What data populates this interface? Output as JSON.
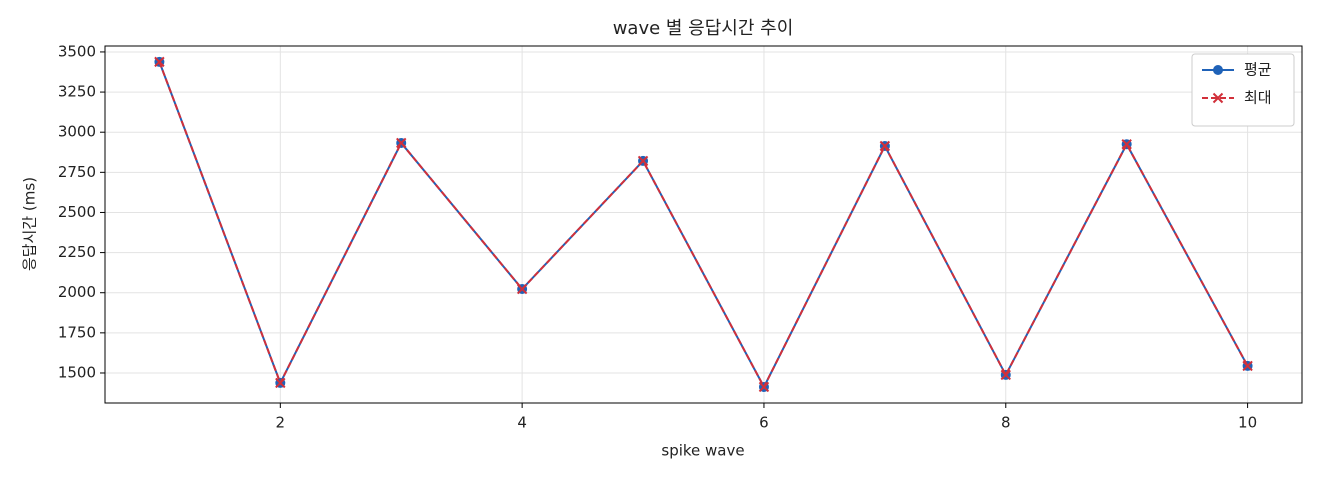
{
  "chart_data": {
    "type": "line",
    "title": "wave 별 응답시간 추이",
    "x_label": "spike wave",
    "y_label": "응답시간 (ms)",
    "x": [
      1,
      2,
      3,
      4,
      5,
      6,
      7,
      8,
      9,
      10
    ],
    "series": [
      {
        "name": "평균",
        "color": "#1f62b8",
        "marker": "circle",
        "dash": false,
        "values": [
          3438,
          1438,
          2933,
          2023,
          2821,
          1413,
          2914,
          1488,
          2925,
          1544
        ]
      },
      {
        "name": "최대",
        "color": "#d2303a",
        "marker": "x",
        "dash": true,
        "values": [
          3438,
          1438,
          2933,
          2023,
          2821,
          1413,
          2914,
          1488,
          2925,
          1544
        ]
      }
    ],
    "xlim": [
      0.55,
      10.45
    ],
    "xticks": [
      2,
      4,
      6,
      8,
      10
    ],
    "ylim": [
      1313,
      3537
    ],
    "yticks": [
      1500,
      1750,
      2000,
      2250,
      2500,
      2750,
      3000,
      3250,
      3500
    ],
    "grid": true,
    "legend": "upper right"
  }
}
